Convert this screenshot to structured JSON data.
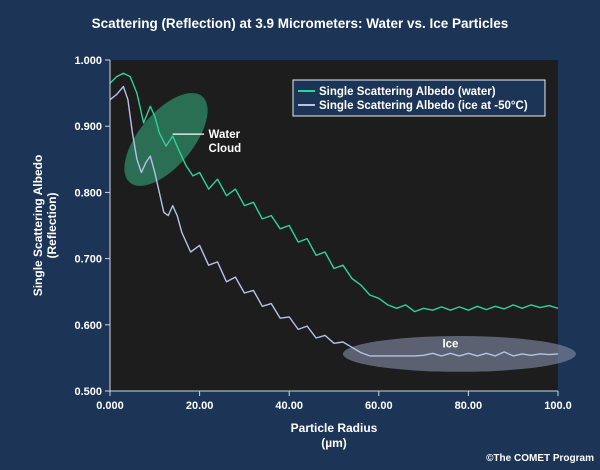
{
  "chart_data": {
    "type": "line",
    "title": "Scattering (Reflection) at 3.9 Micrometers: Water vs. Ice Particles",
    "xlabel_line1": "Particle Radius",
    "xlabel_line2": "(µm)",
    "ylabel_line1": "Single Scattering Albedo",
    "ylabel_line2": "(Reflection)",
    "xlim": [
      0,
      100
    ],
    "ylim": [
      0.5,
      1.0
    ],
    "x_ticks": [
      "0.000",
      "20.00",
      "40.00",
      "60.00",
      "80.00",
      "100.0"
    ],
    "y_ticks": [
      "0.500",
      "0.600",
      "0.700",
      "0.800",
      "0.900",
      "1.000"
    ],
    "legend_position": "top-right",
    "grid": false,
    "series": [
      {
        "name": "Single Scattering Albedo (water)",
        "color": "#2fd39a",
        "points": [
          [
            0,
            0.965
          ],
          [
            1.5,
            0.975
          ],
          [
            3,
            0.98
          ],
          [
            4.5,
            0.975
          ],
          [
            6,
            0.95
          ],
          [
            7.5,
            0.905
          ],
          [
            9,
            0.93
          ],
          [
            10,
            0.915
          ],
          [
            11,
            0.89
          ],
          [
            12.5,
            0.87
          ],
          [
            14,
            0.885
          ],
          [
            15.5,
            0.862
          ],
          [
            17,
            0.84
          ],
          [
            18.5,
            0.825
          ],
          [
            20,
            0.83
          ],
          [
            22,
            0.805
          ],
          [
            24,
            0.82
          ],
          [
            26,
            0.795
          ],
          [
            28,
            0.805
          ],
          [
            30,
            0.78
          ],
          [
            32,
            0.785
          ],
          [
            34,
            0.76
          ],
          [
            36,
            0.765
          ],
          [
            38,
            0.745
          ],
          [
            40,
            0.75
          ],
          [
            42,
            0.725
          ],
          [
            44,
            0.73
          ],
          [
            46,
            0.705
          ],
          [
            48,
            0.71
          ],
          [
            50,
            0.685
          ],
          [
            52,
            0.69
          ],
          [
            54,
            0.67
          ],
          [
            56,
            0.66
          ],
          [
            58,
            0.645
          ],
          [
            60,
            0.64
          ],
          [
            62,
            0.63
          ],
          [
            64,
            0.625
          ],
          [
            66,
            0.63
          ],
          [
            68,
            0.62
          ],
          [
            70,
            0.625
          ],
          [
            72,
            0.622
          ],
          [
            74,
            0.627
          ],
          [
            76,
            0.622
          ],
          [
            78,
            0.627
          ],
          [
            80,
            0.622
          ],
          [
            82,
            0.628
          ],
          [
            84,
            0.623
          ],
          [
            86,
            0.628
          ],
          [
            88,
            0.624
          ],
          [
            90,
            0.63
          ],
          [
            92,
            0.625
          ],
          [
            94,
            0.63
          ],
          [
            96,
            0.626
          ],
          [
            98,
            0.629
          ],
          [
            100,
            0.625
          ]
        ]
      },
      {
        "name": "Single Scattering Albedo (ice at -50°C)",
        "color": "#b7c1ea",
        "points": [
          [
            0,
            0.94
          ],
          [
            1.5,
            0.948
          ],
          [
            3,
            0.96
          ],
          [
            4,
            0.94
          ],
          [
            5,
            0.89
          ],
          [
            6,
            0.85
          ],
          [
            7,
            0.83
          ],
          [
            8,
            0.845
          ],
          [
            9,
            0.855
          ],
          [
            10,
            0.83
          ],
          [
            11,
            0.8
          ],
          [
            12,
            0.77
          ],
          [
            13,
            0.765
          ],
          [
            14,
            0.78
          ],
          [
            15,
            0.765
          ],
          [
            16,
            0.74
          ],
          [
            18,
            0.71
          ],
          [
            20,
            0.72
          ],
          [
            22,
            0.69
          ],
          [
            24,
            0.695
          ],
          [
            26,
            0.665
          ],
          [
            28,
            0.672
          ],
          [
            30,
            0.648
          ],
          [
            32,
            0.652
          ],
          [
            34,
            0.628
          ],
          [
            36,
            0.632
          ],
          [
            38,
            0.61
          ],
          [
            40,
            0.612
          ],
          [
            42,
            0.593
          ],
          [
            44,
            0.598
          ],
          [
            46,
            0.58
          ],
          [
            48,
            0.584
          ],
          [
            50,
            0.572
          ],
          [
            52,
            0.574
          ],
          [
            54,
            0.566
          ],
          [
            56,
            0.558
          ],
          [
            58,
            0.553
          ],
          [
            60,
            0.553
          ],
          [
            62,
            0.553
          ],
          [
            64,
            0.553
          ],
          [
            66,
            0.553
          ],
          [
            68,
            0.553
          ],
          [
            70,
            0.554
          ],
          [
            72,
            0.557
          ],
          [
            74,
            0.553
          ],
          [
            76,
            0.557
          ],
          [
            78,
            0.553
          ],
          [
            80,
            0.557
          ],
          [
            82,
            0.553
          ],
          [
            84,
            0.557
          ],
          [
            86,
            0.553
          ],
          [
            88,
            0.559
          ],
          [
            90,
            0.553
          ],
          [
            92,
            0.556
          ],
          [
            94,
            0.554
          ],
          [
            96,
            0.556
          ],
          [
            98,
            0.555
          ],
          [
            100,
            0.556
          ]
        ]
      }
    ],
    "annotations": [
      {
        "id": "water-cloud",
        "lines": [
          "Water",
          "Cloud"
        ],
        "cx": 12.5,
        "cy": 0.88,
        "rx": 6,
        "ry": 0.085,
        "rotate": 40,
        "fill": "#2f8a66",
        "opacity": 0.75,
        "leader_from": [
          14,
          0.888
        ],
        "leader_to": [
          21,
          0.888
        ],
        "label_x": 22,
        "label_y": 0.888
      },
      {
        "id": "ice",
        "lines": [
          "Ice"
        ],
        "cx": 78,
        "cy": 0.556,
        "rx": 26,
        "ry": 0.027,
        "rotate": 0,
        "fill": "#7d869c",
        "opacity": 0.65,
        "label_x": 76,
        "label_y": 0.572
      }
    ]
  },
  "credit": "©The COMET Program",
  "colors": {
    "background": "#1c3556",
    "plot_area": "#1d1d1d",
    "legend_bg": "#1c3556"
  }
}
